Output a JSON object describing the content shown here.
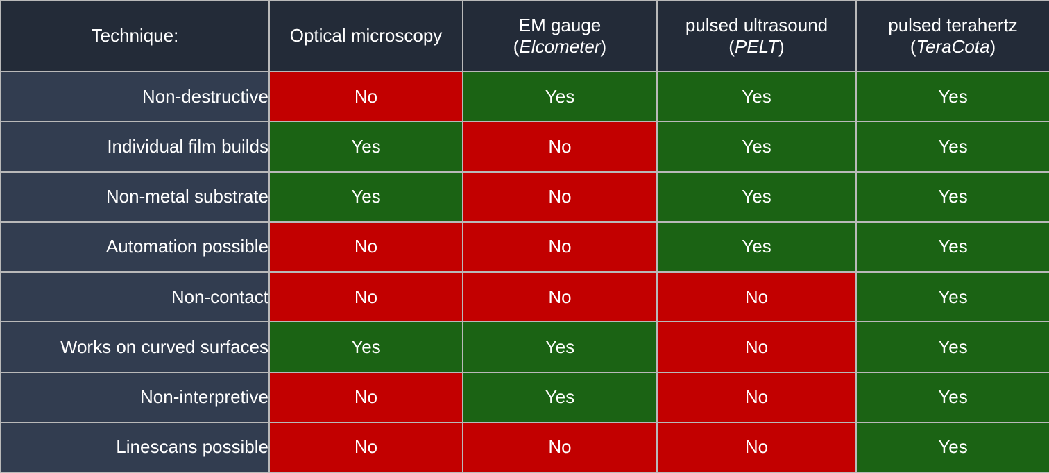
{
  "header": {
    "technique_label": "Technique:",
    "columns": [
      {
        "line1": "Optical microscopy",
        "paren_open": "",
        "italic": "",
        "paren_close": ""
      },
      {
        "line1": "EM gauge",
        "paren_open": "(",
        "italic": "Elcometer",
        "paren_close": ")"
      },
      {
        "line1": "pulsed ultrasound",
        "paren_open": "(",
        "italic": "PELT",
        "paren_close": ")"
      },
      {
        "line1": "pulsed terahertz",
        "paren_open": "(",
        "italic": "TeraCota",
        "paren_close": ")"
      }
    ]
  },
  "rows": [
    {
      "label": "Non-destructive",
      "values": [
        "No",
        "Yes",
        "Yes",
        "Yes"
      ]
    },
    {
      "label": "Individual film builds",
      "values": [
        "Yes",
        "No",
        "Yes",
        "Yes"
      ]
    },
    {
      "label": "Non-metal substrate",
      "values": [
        "Yes",
        "No",
        "Yes",
        "Yes"
      ]
    },
    {
      "label": "Automation possible",
      "values": [
        "No",
        "No",
        "Yes",
        "Yes"
      ]
    },
    {
      "label": "Non-contact",
      "values": [
        "No",
        "No",
        "No",
        "Yes"
      ]
    },
    {
      "label": "Works on curved surfaces",
      "values": [
        "Yes",
        "Yes",
        "No",
        "Yes"
      ]
    },
    {
      "label": "Non-interpretive",
      "values": [
        "No",
        "Yes",
        "No",
        "Yes"
      ]
    },
    {
      "label": "Linescans possible",
      "values": [
        "No",
        "No",
        "No",
        "Yes"
      ]
    }
  ],
  "colors": {
    "yes": "#1b6314",
    "no": "#c20000",
    "header_bg": "#232b38",
    "row_label_bg": "#323d50"
  }
}
